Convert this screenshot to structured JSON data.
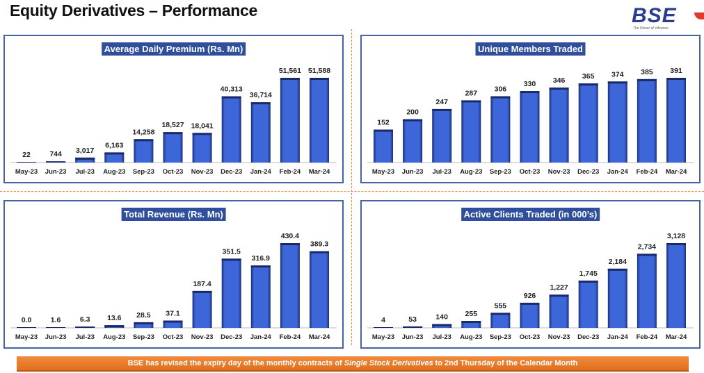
{
  "title": "Equity Derivatives – Performance",
  "logo": {
    "text": "BSE",
    "tagline": "The Power of Vibrance"
  },
  "banner": {
    "pre": "BSE has revised the expiry day of the monthly contracts of ",
    "em": "Single Stock Derivatives",
    "post": " to 2nd Thursday of the Calendar Month"
  },
  "colors": {
    "bar": "#2f55c8",
    "title_bg": "#2f4f9c",
    "banner": "#e87a2a",
    "border": "#4563a8"
  },
  "chart_data": [
    {
      "type": "bar",
      "title": "Average Daily Premium (Rs. Mn)",
      "categories": [
        "May-23",
        "Jun-23",
        "Jul-23",
        "Aug-23",
        "Sep-23",
        "Oct-23",
        "Nov-23",
        "Dec-23",
        "Jan-24",
        "Feb-24",
        "Mar-24"
      ],
      "values": [
        22,
        744,
        3017,
        6163,
        14258,
        18527,
        18041,
        40313,
        36714,
        51561,
        51588
      ],
      "labels": [
        "22",
        "744",
        "3,017",
        "6,163",
        "14,258",
        "18,527",
        "18,041",
        "40,313",
        "36,714",
        "51,561",
        "51,588"
      ],
      "ylim": [
        0,
        51588
      ]
    },
    {
      "type": "bar",
      "title": "Unique Members Traded",
      "categories": [
        "May-23",
        "Jun-23",
        "Jul-23",
        "Aug-23",
        "Sep-23",
        "Oct-23",
        "Nov-23",
        "Dec-23",
        "Jan-24",
        "Feb-24",
        "Mar-24"
      ],
      "values": [
        152,
        200,
        247,
        287,
        306,
        330,
        346,
        365,
        374,
        385,
        391
      ],
      "labels": [
        "152",
        "200",
        "247",
        "287",
        "306",
        "330",
        "346",
        "365",
        "374",
        "385",
        "391"
      ],
      "ylim": [
        0,
        391
      ]
    },
    {
      "type": "bar",
      "title": "Total Revenue (Rs. Mn)",
      "categories": [
        "May-23",
        "Jun-23",
        "Jul-23",
        "Aug-23",
        "Sep-23",
        "Oct-23",
        "Nov-23",
        "Dec-23",
        "Jan-24",
        "Feb-24",
        "Mar-24"
      ],
      "values": [
        0.0,
        1.6,
        6.3,
        13.6,
        28.5,
        37.1,
        187.4,
        351.5,
        316.9,
        430.4,
        389.3
      ],
      "labels": [
        "0.0",
        "1.6",
        "6.3",
        "13.6",
        "28.5",
        "37.1",
        "187.4",
        "351.5",
        "316.9",
        "430.4",
        "389.3"
      ],
      "ylim": [
        0,
        430.4
      ]
    },
    {
      "type": "bar",
      "title": "Active Clients Traded (in 000’s)",
      "categories": [
        "May-23",
        "Jun-23",
        "Jul-23",
        "Aug-23",
        "Sep-23",
        "Oct-23",
        "Nov-23",
        "Dec-23",
        "Jan-24",
        "Feb-24",
        "Mar-24"
      ],
      "values": [
        4,
        53,
        140,
        255,
        555,
        926,
        1227,
        1745,
        2184,
        2734,
        3128
      ],
      "labels": [
        "4",
        "53",
        "140",
        "255",
        "555",
        "926",
        "1,227",
        "1,745",
        "2,184",
        "2,734",
        "3,128"
      ],
      "ylim": [
        0,
        3128
      ]
    }
  ]
}
